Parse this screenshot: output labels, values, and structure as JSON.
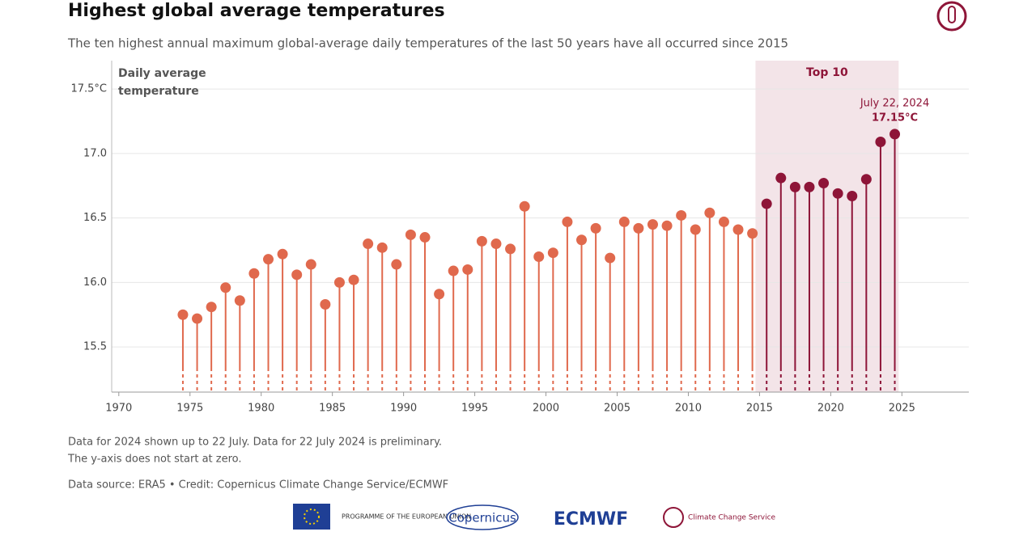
{
  "chart_data": {
    "type": "lollipop",
    "title": "Highest global average temperatures",
    "subtitle": "The ten highest annual maximum global-average daily temperatures of the last 50 years have all occurred since 2015",
    "ylabel": "Daily average temperature",
    "x": [
      1974,
      1975,
      1976,
      1977,
      1978,
      1979,
      1980,
      1981,
      1982,
      1983,
      1984,
      1985,
      1986,
      1987,
      1988,
      1989,
      1990,
      1991,
      1992,
      1993,
      1994,
      1995,
      1996,
      1997,
      1998,
      1999,
      2000,
      2001,
      2002,
      2003,
      2004,
      2005,
      2006,
      2007,
      2008,
      2009,
      2010,
      2011,
      2012,
      2013,
      2014,
      2015,
      2016,
      2017,
      2018,
      2019,
      2020,
      2021,
      2022,
      2023,
      2024
    ],
    "values": [
      15.75,
      15.72,
      15.81,
      15.96,
      15.86,
      16.07,
      16.18,
      16.22,
      16.06,
      16.14,
      15.83,
      16.0,
      16.02,
      16.3,
      16.27,
      16.14,
      16.37,
      16.35,
      15.91,
      16.09,
      16.1,
      16.32,
      16.3,
      16.26,
      16.59,
      16.2,
      16.23,
      16.47,
      16.33,
      16.42,
      16.19,
      16.47,
      16.42,
      16.45,
      16.44,
      16.52,
      16.41,
      16.54,
      16.47,
      16.41,
      16.38,
      16.61,
      16.81,
      16.74,
      16.74,
      16.77,
      16.69,
      16.67,
      16.8,
      17.09,
      17.15
    ],
    "value_labels": [
      null,
      null,
      null,
      null,
      null,
      null,
      null,
      null,
      null,
      null,
      null,
      null,
      null,
      null,
      null,
      null,
      null,
      null,
      null,
      null,
      null,
      null,
      null,
      null,
      null,
      null,
      null,
      null,
      null,
      null,
      null,
      null,
      null,
      null,
      null,
      null,
      null,
      null,
      null,
      null,
      null,
      null,
      null,
      null,
      null,
      null,
      null,
      null,
      null,
      null,
      "17.15°C"
    ],
    "annotation": "July 22, 2024",
    "color": "#e0694d",
    "highlight": {
      "label": "Top 10",
      "from": 2015,
      "color": "#8e1538",
      "band_color": "#f3e4e8"
    },
    "xlim": [
      1969.5,
      2029.7
    ],
    "xticks": [
      1970,
      1975,
      1980,
      1985,
      1990,
      1995,
      2000,
      2005,
      2010,
      2015,
      2020,
      2025
    ],
    "ylim": [
      15.15,
      17.72
    ],
    "yticks": [
      15.5,
      {
        "value": 16.0,
        "label": "16.0"
      },
      16.5,
      {
        "value": 17.0,
        "label": "17.0"
      },
      {
        "value": 17.5,
        "label": "17.5°C"
      }
    ],
    "grid": true
  },
  "notes": [
    "Data for 2024 shown up to 22 July. Data for 22 July 2024 is preliminary.",
    "The y-axis does not start at zero."
  ],
  "source": "Data source: ERA5 • Credit: Copernicus Climate Change Service/ECMWF",
  "logos": [
    "PROGRAMME OF THE EUROPEAN UNION",
    "Copernicus",
    "ECMWF",
    "Climate Change Service"
  ]
}
